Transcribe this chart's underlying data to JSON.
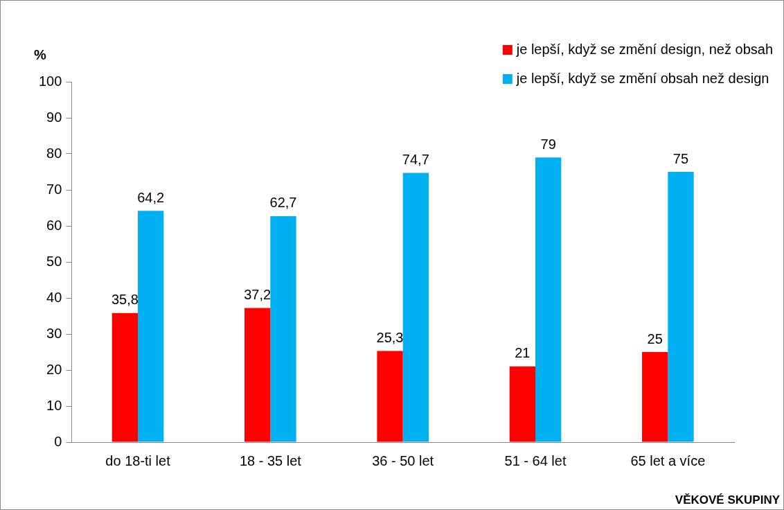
{
  "chart_data": {
    "type": "bar",
    "ylabel": "%",
    "xlabel": "VĚKOVÉ SKUPINY",
    "categories": [
      "do 18-ti let",
      "18 - 35 let",
      "36 - 50 let",
      "51 - 64 let",
      "65 let a více"
    ],
    "series": [
      {
        "name": "je lepší, když se změní design, než obsah",
        "color": "#ff0000",
        "values": [
          35.8,
          37.2,
          25.3,
          21,
          25
        ],
        "value_labels": [
          "35,8",
          "37,2",
          "25,3",
          "21",
          "25"
        ]
      },
      {
        "name": "je lepší, když se změní obsah než design",
        "color": "#00b0f0",
        "values": [
          64.2,
          62.7,
          74.7,
          79,
          75
        ],
        "value_labels": [
          "64,2",
          "62,7",
          "74,7",
          "79",
          "75"
        ]
      }
    ],
    "ylim": [
      0,
      100
    ],
    "yticks": [
      0,
      10,
      20,
      30,
      40,
      50,
      60,
      70,
      80,
      90,
      100
    ],
    "grid": false,
    "legend": "top right"
  }
}
